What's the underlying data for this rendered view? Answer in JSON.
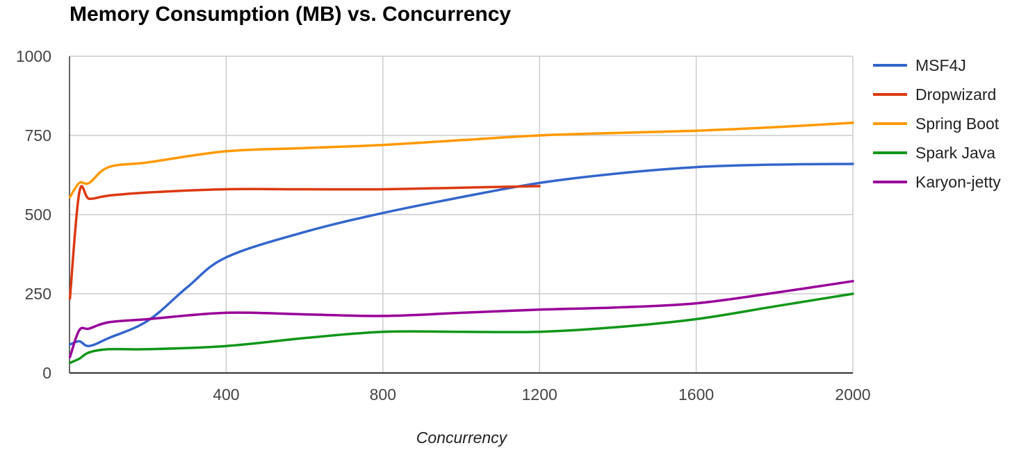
{
  "chart_data": {
    "type": "line",
    "title": "Memory Consumption (MB) vs. Concurrency",
    "xlabel": "Concurrency",
    "ylabel": "",
    "xlim": [
      0,
      2000
    ],
    "ylim": [
      0,
      1000
    ],
    "x_ticks": [
      400,
      800,
      1200,
      1600,
      2000
    ],
    "y_ticks": [
      0,
      250,
      500,
      750,
      1000
    ],
    "grid": true,
    "legend_position": "right",
    "series": [
      {
        "name": "MSF4J",
        "color": "#3366cc",
        "x": [
          1,
          25,
          50,
          100,
          200,
          300,
          400,
          600,
          800,
          1000,
          1200,
          1400,
          1600,
          1800,
          2000
        ],
        "y": [
          90,
          100,
          85,
          110,
          165,
          270,
          365,
          445,
          505,
          555,
          600,
          630,
          650,
          658,
          660
        ]
      },
      {
        "name": "Dropwizard",
        "color": "#dc3912",
        "x": [
          1,
          25,
          50,
          100,
          200,
          400,
          600,
          800,
          1000,
          1200
        ],
        "y": [
          235,
          570,
          550,
          560,
          570,
          580,
          580,
          580,
          585,
          590
        ]
      },
      {
        "name": "Spring Boot",
        "color": "#ff9900",
        "x": [
          1,
          25,
          50,
          100,
          200,
          400,
          600,
          800,
          1000,
          1200,
          1400,
          1600,
          1800,
          2000
        ],
        "y": [
          555,
          600,
          600,
          650,
          665,
          700,
          710,
          720,
          735,
          750,
          758,
          765,
          776,
          790
        ]
      },
      {
        "name": "Spark Java",
        "color": "#109618",
        "x": [
          1,
          25,
          50,
          100,
          200,
          400,
          600,
          800,
          1000,
          1200,
          1400,
          1600,
          1800,
          2000
        ],
        "y": [
          32,
          45,
          65,
          75,
          75,
          85,
          110,
          130,
          130,
          130,
          145,
          170,
          210,
          250
        ]
      },
      {
        "name": "Karyon-jetty",
        "color": "#990099",
        "x": [
          1,
          25,
          50,
          100,
          200,
          400,
          600,
          800,
          1000,
          1200,
          1400,
          1600,
          1800,
          2000
        ],
        "y": [
          50,
          135,
          140,
          160,
          170,
          190,
          185,
          180,
          190,
          200,
          207,
          220,
          253,
          290
        ]
      }
    ]
  }
}
